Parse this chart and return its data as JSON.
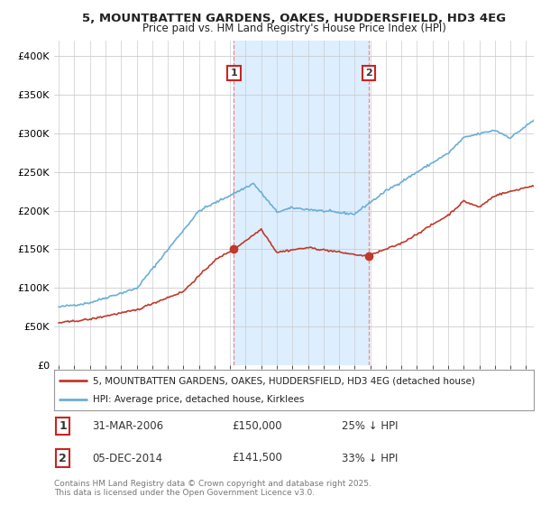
{
  "title_line1": "5, MOUNTBATTEN GARDENS, OAKES, HUDDERSFIELD, HD3 4EG",
  "title_line2": "Price paid vs. HM Land Registry's House Price Index (HPI)",
  "ylim": [
    0,
    420000
  ],
  "yticks": [
    0,
    50000,
    100000,
    150000,
    200000,
    250000,
    300000,
    350000,
    400000
  ],
  "ytick_labels": [
    "£0",
    "£50K",
    "£100K",
    "£150K",
    "£200K",
    "£250K",
    "£300K",
    "£350K",
    "£400K"
  ],
  "background_color": "#ffffff",
  "grid_color": "#cccccc",
  "hpi_color": "#6baed6",
  "price_color": "#c0392b",
  "shade_color": "#ddeeff",
  "marker1_date": "31-MAR-2006",
  "marker1_price": "£150,000",
  "marker1_pct": "25% ↓ HPI",
  "marker2_date": "05-DEC-2014",
  "marker2_price": "£141,500",
  "marker2_pct": "33% ↓ HPI",
  "legend_line1": "5, MOUNTBATTEN GARDENS, OAKES, HUDDERSFIELD, HD3 4EG (detached house)",
  "legend_line2": "HPI: Average price, detached house, Kirklees",
  "footer": "Contains HM Land Registry data © Crown copyright and database right 2025.\nThis data is licensed under the Open Government Licence v3.0.",
  "marker1_x": 2006.25,
  "marker2_x": 2014.92,
  "marker1_y": 150000,
  "marker2_y": 141500,
  "xmin": 1995.0,
  "xmax": 2025.5
}
